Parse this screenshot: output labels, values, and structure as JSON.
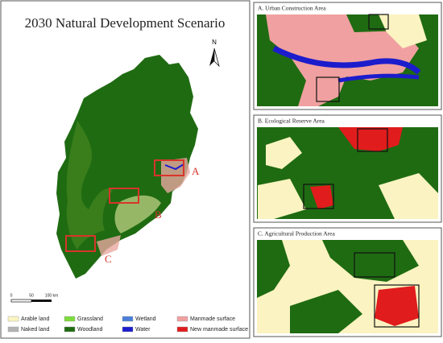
{
  "main_map": {
    "title": "2030 Natural Development Scenario",
    "north": "N",
    "markers": [
      "A",
      "B",
      "C"
    ],
    "scale_labels": [
      "0",
      "50",
      "100 km"
    ]
  },
  "legend": [
    {
      "label": "Arable land",
      "color": "#fbf3c1"
    },
    {
      "label": "Naked land",
      "color": "#b4b4b4"
    },
    {
      "label": "Grassland",
      "color": "#7ddc3c"
    },
    {
      "label": "Woodland",
      "color": "#1f6b12"
    },
    {
      "label": "Wetland",
      "color": "#4a7fd9"
    },
    {
      "label": "Water",
      "color": "#1c1ccc"
    },
    {
      "label": "Manmade surface",
      "color": "#f0a0a0"
    },
    {
      "label": "New manmade surface",
      "color": "#e01c1c"
    }
  ],
  "panels": [
    {
      "title": "A. Urban Construction Area"
    },
    {
      "title": "B. Ecological Reserve Area"
    },
    {
      "title": "C. Agricultural Production Area"
    }
  ]
}
